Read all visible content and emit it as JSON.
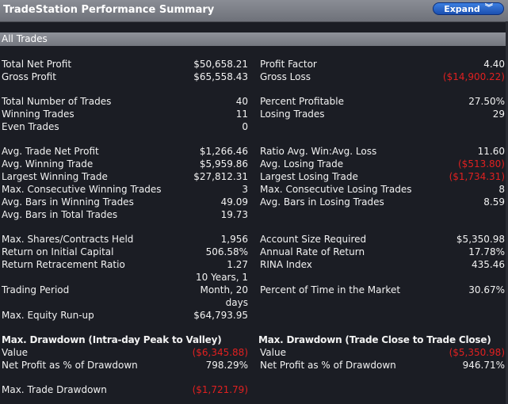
{
  "window": {
    "title": "TradeStation Performance Summary",
    "expand_label": "Expand"
  },
  "section": {
    "label": "All Trades"
  },
  "rows": [
    {
      "left_label": "Total Net Profit",
      "left_value": "$50,658.21",
      "right_label": "Profit Factor",
      "right_value": "4.40"
    },
    {
      "left_label": "Gross Profit",
      "left_value": "$65,558.43",
      "right_label": "Gross Loss",
      "right_value": "($14,900.22)"
    },
    {
      "left_label": "Total Number of Trades",
      "left_value": "40",
      "right_label": "Percent Profitable",
      "right_value": "27.50%"
    },
    {
      "left_label": "Winning Trades",
      "left_value": "11",
      "right_label": "Losing Trades",
      "right_value": "29"
    },
    {
      "left_label": "Even Trades",
      "left_value": "0",
      "right_label": "",
      "right_value": ""
    },
    {
      "left_label": "Avg. Trade Net Profit",
      "left_value": "$1,266.46",
      "right_label": "Ratio Avg. Win:Avg. Loss",
      "right_value": "11.60"
    },
    {
      "left_label": "Avg. Winning Trade",
      "left_value": "$5,959.86",
      "right_label": "Avg. Losing Trade",
      "right_value": "($513.80)"
    },
    {
      "left_label": "Largest Winning Trade",
      "left_value": "$27,812.31",
      "right_label": "Largest Losing Trade",
      "right_value": "($1,734.31)"
    },
    {
      "left_label": "Max. Consecutive Winning Trades",
      "left_value": "3",
      "right_label": "Max. Consecutive Losing Trades",
      "right_value": "8"
    },
    {
      "left_label": "Avg. Bars in Winning Trades",
      "left_value": "49.09",
      "right_label": "Avg. Bars in Losing Trades",
      "right_value": "8.59"
    },
    {
      "left_label": "Avg. Bars in Total Trades",
      "left_value": "19.73",
      "right_label": "",
      "right_value": ""
    },
    {
      "left_label": "Max. Shares/Contracts Held",
      "left_value": "1,956",
      "right_label": "Account Size Required",
      "right_value": "$5,350.98"
    },
    {
      "left_label": "Return on Initial Capital",
      "left_value": "506.58%",
      "right_label": "Annual Rate of Return",
      "right_value": "17.78%"
    },
    {
      "left_label": "Return Retracement Ratio",
      "left_value": "1.27",
      "right_label": "RINA Index",
      "right_value": "435.46"
    }
  ],
  "trading_period": {
    "label": "Trading Period",
    "value_lines": [
      "10 Years, 1",
      "Month, 20",
      "days"
    ],
    "right_label": "Percent of Time in the Market",
    "right_value": "30.67%"
  },
  "equity_runup": {
    "label": "Max. Equity Run-up",
    "value": "$64,793.95"
  },
  "drawdown_intraday": {
    "header": "Max. Drawdown (Intra-day Peak to Valley)",
    "value_label": "Value",
    "value": "($6,345.88)",
    "pct_label": "Net Profit as % of Drawdown",
    "pct_value": "798.29%"
  },
  "drawdown_close": {
    "header": "Max. Drawdown (Trade Close to Trade Close)",
    "value_label": "Value",
    "value": "($5,350.98)",
    "pct_label": "Net Profit as % of Drawdown",
    "pct_value": "946.71%"
  },
  "trade_drawdown": {
    "label": "Max. Trade Drawdown",
    "value": "($1,721.79)"
  },
  "colors": {
    "negative": "#e02020",
    "background": "#1b1d24",
    "header_bar": "#7c7f87",
    "button": "#2a64c8"
  }
}
